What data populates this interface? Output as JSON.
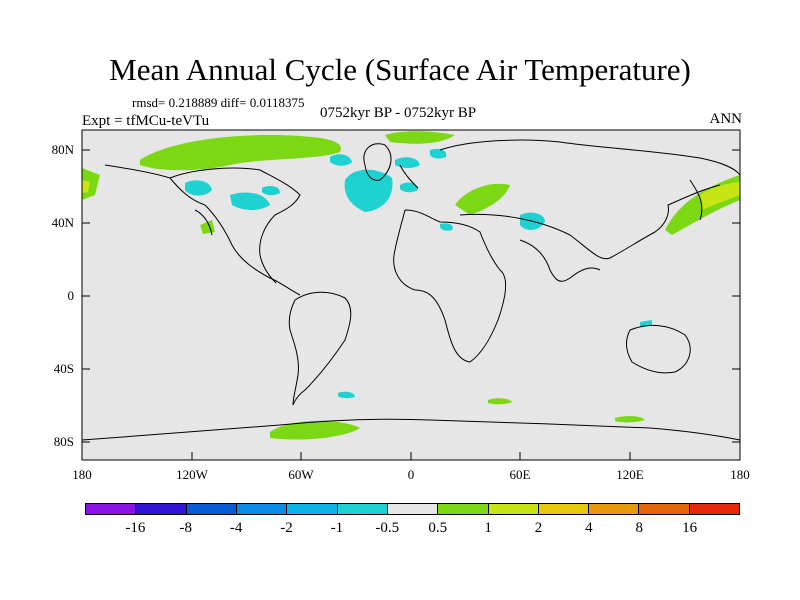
{
  "title": "Mean Annual Cycle (Surface Air Temperature)",
  "stats": "rmsd= 0.218889 diff= 0.0118375",
  "experiment": "Expt = tfMCu-teVTu",
  "period": "0752kyr BP - 0752kyr BP",
  "season": "ANN",
  "lat_labels": [
    "80N",
    "40N",
    "0",
    "40S",
    "80S"
  ],
  "lon_labels": [
    "180",
    "120W",
    "60W",
    "0",
    "60E",
    "120E",
    "180"
  ],
  "colorbar": {
    "labels": [
      "-16",
      "-8",
      "-4",
      "-2",
      "-1",
      "-0.5",
      "0.5",
      "1",
      "2",
      "4",
      "8",
      "16"
    ],
    "colors": [
      "#8a14e6",
      "#3214d6",
      "#0a5ad6",
      "#0a8ce6",
      "#0ab4e6",
      "#1ed2d2",
      "#e6e6e6",
      "#7dd814",
      "#c8e614",
      "#e6c80a",
      "#e69a0a",
      "#e6640a",
      "#e6280a"
    ]
  },
  "colors": {
    "ocean_land_bg": "#e6e6e6",
    "warm_anomaly": "#7dd814",
    "warm_anomaly_strong": "#c8e614",
    "cold_anomaly": "#1ed2d2"
  }
}
